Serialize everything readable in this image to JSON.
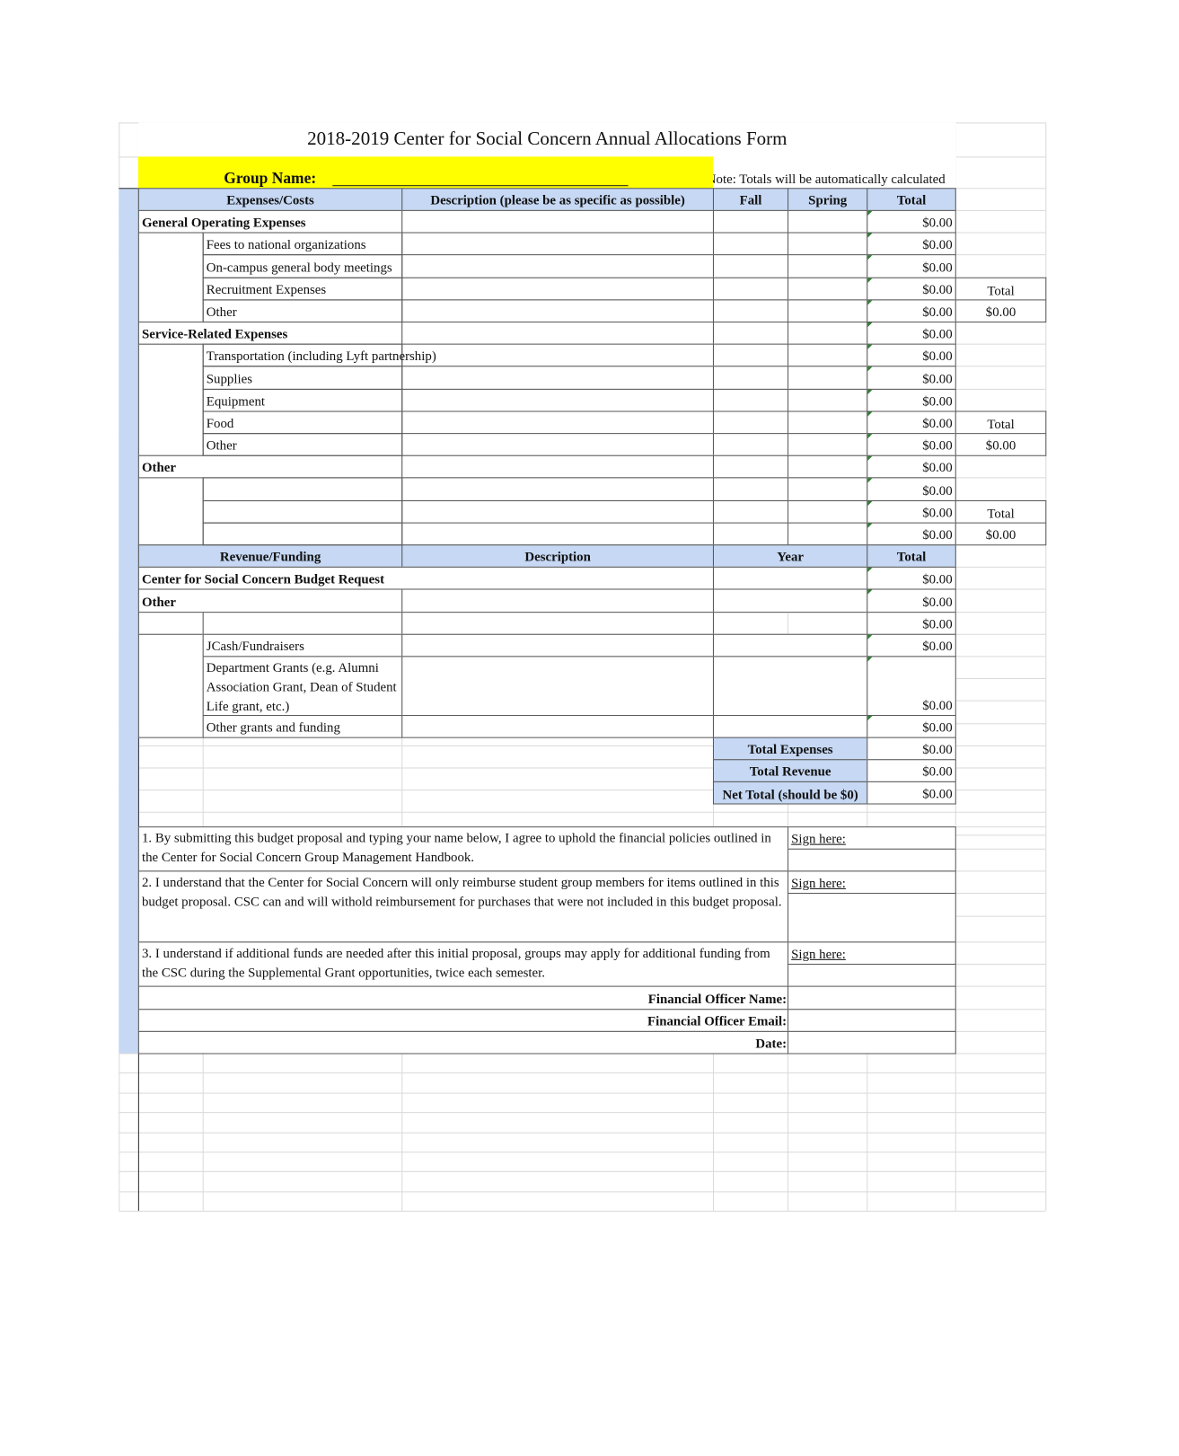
{
  "title": "2018-2019 Center for Social Concern Annual Allocations Form",
  "group_name_label": "Group Name:",
  "note": "Note: Totals will be automatically calculated",
  "colors": {
    "header_fill": "#c6d8f3",
    "highlight": "#ffff00",
    "marker": "#2e7d32"
  },
  "expense_headers": [
    "Expenses/Costs",
    "Description (please be as specific as possible)",
    "Fall",
    "Spring",
    "Total"
  ],
  "expense_rows": [
    {
      "label": "General Operating Expenses",
      "total": "$0.00"
    },
    {
      "label": "Fees to national organizations",
      "total": "$0.00"
    },
    {
      "label": "On-campus general body meetings",
      "total": "$0.00"
    },
    {
      "label": "Recruitment Expenses",
      "total": "$0.00"
    },
    {
      "label": "Other",
      "total": "$0.00"
    },
    {
      "label": "Service-Related Expenses",
      "total": "$0.00"
    },
    {
      "label": "Transportation (including Lyft partnership)",
      "total": "$0.00"
    },
    {
      "label": "Supplies",
      "total": "$0.00"
    },
    {
      "label": "Equipment",
      "total": "$0.00"
    },
    {
      "label": "Food",
      "total": "$0.00"
    },
    {
      "label": "Other",
      "total": "$0.00"
    },
    {
      "label": "Other",
      "total": "$0.00"
    },
    {
      "label": "",
      "total": "$0.00"
    },
    {
      "label": "",
      "total": "$0.00"
    },
    {
      "label": "",
      "total": "$0.00"
    }
  ],
  "subtotals": [
    {
      "label": "Total",
      "value": "$0.00"
    },
    {
      "label": "Total",
      "value": "$0.00"
    },
    {
      "label": "Total",
      "value": "$0.00"
    }
  ],
  "revenue_headers": [
    "Revenue/Funding",
    "Description",
    "Year",
    "Total"
  ],
  "revenue_rows": [
    {
      "label": "Center for Social Concern Budget Request",
      "total": "$0.00"
    },
    {
      "label": "Other",
      "total": "$0.00"
    },
    {
      "label": "",
      "total": "$0.00"
    },
    {
      "label": "JCash/Fundraisers",
      "total": "$0.00"
    },
    {
      "label": "Department Grants (e.g. Alumni Association Grant, Dean of Student Life grant, etc.)",
      "total": "$0.00"
    },
    {
      "label": "Other grants and funding",
      "total": "$0.00"
    }
  ],
  "summary": [
    {
      "label": "Total Expenses",
      "value": "$0.00"
    },
    {
      "label": "Total Revenue",
      "value": "$0.00"
    },
    {
      "label": "Net Total (should be $0)",
      "value": "$0.00"
    }
  ],
  "statements": [
    {
      "text": "1. By submitting this budget proposal and typing your name below, I agree to uphold the financial policies outlined in the Center for Social Concern Group Management Handbook.",
      "sign_label": "Sign here:"
    },
    {
      "text": "2. I understand that the Center for Social Concern will only reimburse student group members for items outlined in this budget proposal. CSC can and will withold reimbursement for purchases that were not included in this budget proposal.",
      "sign_label": "Sign here:"
    },
    {
      "text": "3. I understand if additional funds are needed after this initial proposal, groups may apply for additional funding from the CSC during the Supplemental Grant opportunities, twice each semester.",
      "sign_label": "Sign here:"
    }
  ],
  "officer_fields": [
    "Financial  Officer Name:",
    "Financial  Officer Email:",
    "Date:"
  ]
}
